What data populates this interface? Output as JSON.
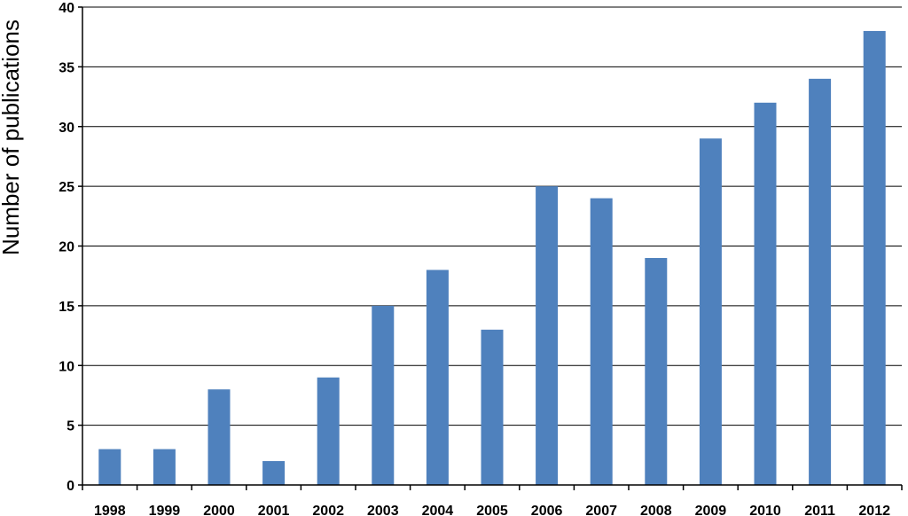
{
  "chart_data": {
    "type": "bar",
    "title": "",
    "xlabel": "",
    "ylabel": "Number of publications",
    "categories": [
      "1998",
      "1999",
      "2000",
      "2001",
      "2002",
      "2003",
      "2004",
      "2005",
      "2006",
      "2007",
      "2008",
      "2009",
      "2010",
      "2011",
      "2012"
    ],
    "values": [
      3,
      3,
      8,
      2,
      9,
      15,
      18,
      13,
      25,
      24,
      19,
      29,
      32,
      34,
      38
    ],
    "ylim": [
      0,
      40
    ],
    "yticks": [
      0,
      5,
      10,
      15,
      20,
      25,
      30,
      35,
      40
    ],
    "grid": true,
    "legend": "none",
    "bar_color": "#4f81bd"
  }
}
